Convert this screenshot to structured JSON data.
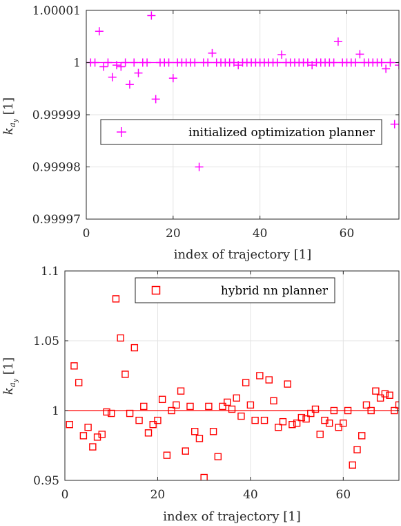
{
  "chart_data": [
    {
      "type": "scatter",
      "xlabel": "index of trajectory [1]",
      "ylabel": "k",
      "ylabel_sub": "a",
      "ylabel_subsub": "y",
      "ylabel_unit": "[1]",
      "xlim": [
        0,
        72
      ],
      "ylim": [
        0.99997,
        1.00001
      ],
      "xticks": [
        0,
        20,
        40,
        60
      ],
      "xtick_labels": [
        "0",
        "20",
        "40",
        "60"
      ],
      "yticks": [
        0.99997,
        0.99998,
        0.99999,
        1,
        1.00001
      ],
      "ytick_labels": [
        "0.99997",
        "0.99998",
        "0.99999",
        "1",
        "1.00001"
      ],
      "grid": true,
      "legend_position": "center-right",
      "reference_line": 1,
      "series": [
        {
          "name": "initialized optimization planner",
          "marker": "plus",
          "color": "#ff00ff",
          "x": [
            1,
            2,
            3,
            4,
            5,
            6,
            7,
            8,
            9,
            10,
            11,
            12,
            13,
            14,
            15,
            16,
            17,
            18,
            19,
            20,
            21,
            22,
            23,
            24,
            25,
            26,
            27,
            28,
            29,
            30,
            31,
            32,
            33,
            34,
            35,
            36,
            37,
            38,
            39,
            40,
            41,
            42,
            43,
            44,
            45,
            46,
            47,
            48,
            49,
            50,
            51,
            52,
            53,
            54,
            55,
            56,
            57,
            58,
            59,
            60,
            61,
            62,
            63,
            64,
            65,
            66,
            67,
            68,
            69,
            70,
            71,
            72
          ],
          "y": [
            1.0,
            1.0,
            1.000006,
            0.9999992,
            1.0,
            0.9999972,
            0.9999995,
            0.9999992,
            1.0,
            0.9999958,
            1.0,
            0.999998,
            1.0,
            1.0,
            1.000009,
            0.999993,
            1.0,
            1.0,
            1.0,
            0.999997,
            1.0,
            1.0,
            1.0,
            1.0,
            1.0,
            0.99998,
            1.0,
            1.0,
            1.0000018,
            1.0,
            1.0,
            1.0,
            1.0,
            1.0,
            0.9999995,
            1.0,
            1.0,
            1.0,
            1.0,
            1.0,
            1.0,
            1.0,
            1.0,
            1.0,
            1.0000015,
            1.0,
            1.0,
            1.0,
            1.0,
            1.0,
            1.0,
            0.9999995,
            1.0,
            1.0,
            1.0,
            1.0,
            1.0,
            1.000004,
            1.0,
            1.0,
            1.0,
            1.0,
            1.0000016,
            1.0,
            1.0,
            1.0,
            1.0,
            1.0,
            0.9999988,
            1.0,
            0.9999882,
            0.9999995
          ]
        }
      ]
    },
    {
      "type": "scatter",
      "xlabel": "index of trajectory [1]",
      "ylabel": "k",
      "ylabel_sub": "a",
      "ylabel_subsub": "y",
      "ylabel_unit": "[1]",
      "xlim": [
        0,
        72
      ],
      "ylim": [
        0.95,
        1.1
      ],
      "xticks": [
        0,
        20,
        40,
        60
      ],
      "xtick_labels": [
        "0",
        "20",
        "40",
        "60"
      ],
      "yticks": [
        0.95,
        1,
        1.05,
        1.1
      ],
      "ytick_labels": [
        "0.95",
        "1",
        "1.05",
        "1.1"
      ],
      "grid": true,
      "legend_position": "top",
      "reference_line": 1,
      "series": [
        {
          "name": "hybrid nn planner",
          "marker": "square",
          "color": "#ff0000",
          "x": [
            1,
            2,
            3,
            4,
            5,
            6,
            7,
            8,
            9,
            10,
            11,
            12,
            13,
            14,
            15,
            16,
            17,
            18,
            19,
            20,
            21,
            22,
            23,
            24,
            25,
            26,
            27,
            28,
            29,
            30,
            31,
            32,
            33,
            34,
            35,
            36,
            37,
            38,
            39,
            40,
            41,
            42,
            43,
            44,
            45,
            46,
            47,
            48,
            49,
            50,
            51,
            52,
            53,
            54,
            55,
            56,
            57,
            58,
            59,
            60,
            61,
            62,
            63,
            64,
            65,
            66,
            67,
            68,
            69,
            70,
            71,
            72
          ],
          "y": [
            0.99,
            1.032,
            1.02,
            0.982,
            0.988,
            0.974,
            0.981,
            0.983,
            0.999,
            0.998,
            1.08,
            1.052,
            1.026,
            0.998,
            1.045,
            0.993,
            1.003,
            0.984,
            0.99,
            0.993,
            1.008,
            0.968,
            1.0,
            1.004,
            1.014,
            0.971,
            1.003,
            0.985,
            0.98,
            0.952,
            1.003,
            0.985,
            0.967,
            1.003,
            1.006,
            1.001,
            1.009,
            0.996,
            1.02,
            1.004,
            0.993,
            1.025,
            0.993,
            1.022,
            1.007,
            0.988,
            0.992,
            1.019,
            0.99,
            0.991,
            0.995,
            0.994,
            0.998,
            1.001,
            0.983,
            0.993,
            0.991,
            1.0,
            0.988,
            0.991,
            1.0,
            0.961,
            0.972,
            0.982,
            1.004,
            1.0,
            1.014,
            1.009,
            1.012,
            1.011,
            1.0,
            1.004
          ]
        }
      ]
    }
  ]
}
